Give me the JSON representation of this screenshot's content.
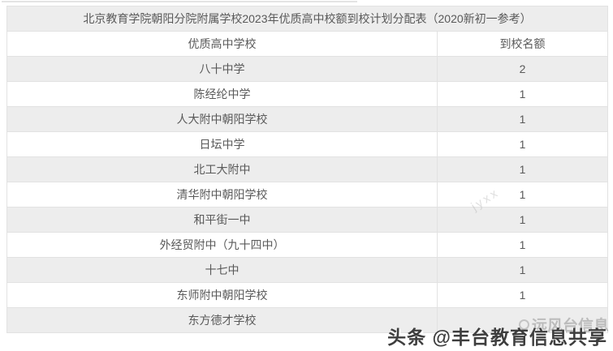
{
  "table": {
    "title": "北京教育学院朝阳分院附属学校2023年优质高中校额到校计划分配表（2020新初一参考）",
    "columns": [
      "优质高中学校",
      "到校名额"
    ],
    "rows": [
      {
        "school": "八十中学",
        "quota": "2"
      },
      {
        "school": "陈经纶中学",
        "quota": "1"
      },
      {
        "school": "人大附中朝阳学校",
        "quota": "1"
      },
      {
        "school": "日坛中学",
        "quota": "1"
      },
      {
        "school": "北工大附中",
        "quota": "1"
      },
      {
        "school": "清华附中朝阳学校",
        "quota": "1"
      },
      {
        "school": "和平街一中",
        "quota": "1"
      },
      {
        "school": "外经贸附中（九十四中）",
        "quota": "1"
      },
      {
        "school": "十七中",
        "quota": "1"
      },
      {
        "school": "东师附中朝阳学校",
        "quota": "1"
      },
      {
        "school": "东方德才学校",
        "quota": ""
      }
    ]
  },
  "watermarks": {
    "diagonal": "jyxx",
    "faint_brand": "远风台信息",
    "credit": "头条 @丰台教育信息共享"
  },
  "colors": {
    "row_alt": "#ededed",
    "row_base": "#ffffff",
    "border": "#e2e2e2",
    "cell_text": "#595959",
    "credit_text": "#3e3e3e",
    "faint_text": "#bcbcbc"
  }
}
